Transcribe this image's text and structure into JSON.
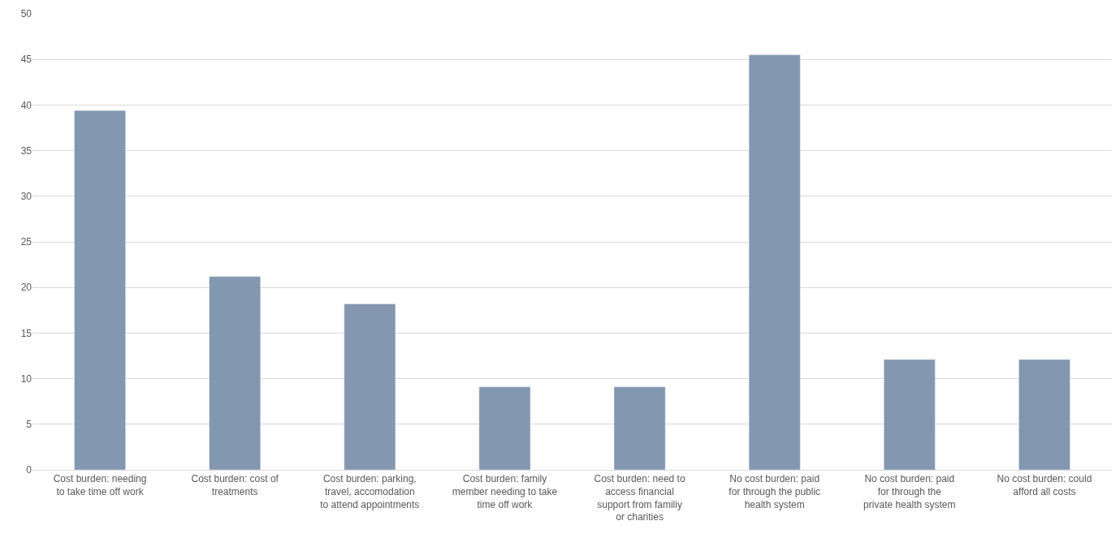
{
  "chart_data": {
    "type": "bar",
    "categories": [
      "Cost burden: needing to take time off work",
      "Cost burden: cost of treatments",
      "Cost burden: parking, travel, accomodation to attend appointments",
      "Cost burden: family member needing to take time off work",
      "Cost burden: need to access financial support from familiy or charities",
      "No cost burden: paid for through the public health system",
      "No cost burden: paid for through the private health system",
      "No cost burden: could afford all costs"
    ],
    "values": [
      39.4,
      21.2,
      18.2,
      9.1,
      9.1,
      45.5,
      12.1,
      12.1
    ],
    "color": "#8497b0",
    "ylim": [
      0,
      50
    ],
    "yticks": [
      0,
      5,
      10,
      15,
      20,
      25,
      30,
      35,
      40,
      45,
      50
    ],
    "grid": "y"
  }
}
